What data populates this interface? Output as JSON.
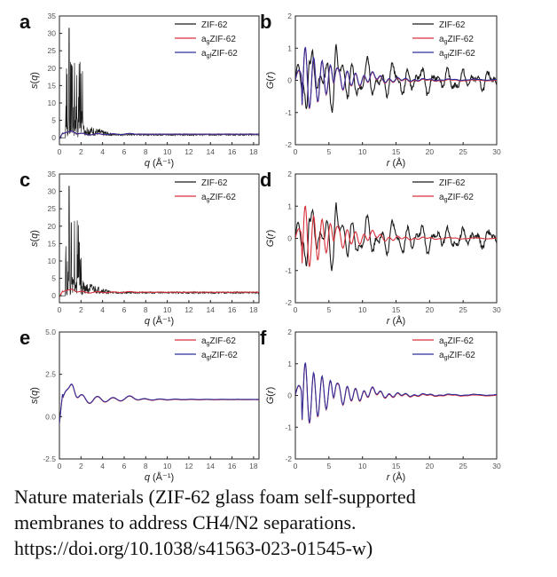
{
  "caption": {
    "line1": "Nature materials (ZIF-62 glass foam self-supported",
    "line2": "membranes to address CH4/N2 separations.",
    "line3": "https://doi.org/10.1038/s41563-023-01545-w)"
  },
  "colors": {
    "crystal": "#1a1a1a",
    "ag": "#d8303a",
    "agf": "#2e2e9c"
  },
  "chart_data": [
    {
      "panel": "a",
      "type": "line",
      "xlabel": "q (Å⁻¹)",
      "ylabel": "s(q)",
      "xlim": [
        0,
        18.5
      ],
      "ylim": [
        -2,
        35
      ],
      "xticks": [
        0,
        2,
        4,
        6,
        8,
        10,
        12,
        14,
        16,
        18
      ],
      "yticks": [
        0,
        5,
        10,
        15,
        20,
        25,
        30,
        35
      ],
      "legend": "top-right",
      "series": [
        {
          "name": "ZIF-62",
          "color": "crystal",
          "kind": "sq_crystal"
        },
        {
          "name": "agZIF-62",
          "color": "ag",
          "kind": "sq_glass"
        },
        {
          "name": "agfZIF-62",
          "color": "agf",
          "kind": "sq_glass"
        }
      ]
    },
    {
      "panel": "b",
      "type": "line",
      "xlabel": "r (Å)",
      "ylabel": "G(r)",
      "xlim": [
        0,
        30
      ],
      "ylim": [
        -2,
        2
      ],
      "xticks": [
        0,
        5,
        10,
        15,
        20,
        25,
        30
      ],
      "yticks": [
        -2,
        -1,
        0,
        1,
        2
      ],
      "legend": "top-right",
      "series": [
        {
          "name": "ZIF-62",
          "color": "crystal",
          "kind": "gr_crystal"
        },
        {
          "name": "agZIF-62",
          "color": "ag",
          "kind": "gr_glass"
        },
        {
          "name": "agfZIF-62",
          "color": "agf",
          "kind": "gr_glass"
        }
      ]
    },
    {
      "panel": "c",
      "type": "line",
      "xlabel": "q (Å⁻¹)",
      "ylabel": "s(q)",
      "xlim": [
        0,
        18.5
      ],
      "ylim": [
        -2,
        35
      ],
      "xticks": [
        0,
        2,
        4,
        6,
        8,
        10,
        12,
        14,
        16,
        18
      ],
      "yticks": [
        0,
        5,
        10,
        15,
        20,
        25,
        30,
        35
      ],
      "legend": "top-right",
      "series": [
        {
          "name": "ZIF-62",
          "color": "crystal",
          "kind": "sq_crystal"
        },
        {
          "name": "agZIF-62",
          "color": "ag",
          "kind": "sq_glass"
        }
      ]
    },
    {
      "panel": "d",
      "type": "line",
      "xlabel": "r (Å)",
      "ylabel": "G(r)",
      "xlim": [
        0,
        30
      ],
      "ylim": [
        -2,
        2
      ],
      "xticks": [
        0,
        5,
        10,
        15,
        20,
        25,
        30
      ],
      "yticks": [
        -2,
        -1,
        0,
        1,
        2
      ],
      "legend": "top-right",
      "series": [
        {
          "name": "ZIF-62",
          "color": "crystal",
          "kind": "gr_crystal"
        },
        {
          "name": "agZIF-62",
          "color": "ag",
          "kind": "gr_glass"
        }
      ]
    },
    {
      "panel": "e",
      "type": "line",
      "xlabel": "q (Å⁻¹)",
      "ylabel": "s(q)",
      "xlim": [
        0,
        18.5
      ],
      "ylim": [
        -2.5,
        5.0
      ],
      "xticks": [
        0,
        2,
        4,
        6,
        8,
        10,
        12,
        14,
        16,
        18
      ],
      "yticks": [
        -2.5,
        0.0,
        2.5,
        5.0
      ],
      "ytick_labels": [
        "-2.5",
        "0.0",
        "2.5",
        "5.0"
      ],
      "legend": "top-right",
      "series": [
        {
          "name": "agZIF-62",
          "color": "ag",
          "kind": "sq_glass"
        },
        {
          "name": "agfZIF-62",
          "color": "agf",
          "kind": "sq_glass"
        }
      ]
    },
    {
      "panel": "f",
      "type": "line",
      "xlabel": "r (Å)",
      "ylabel": "G(r)",
      "xlim": [
        0,
        30
      ],
      "ylim": [
        -2,
        2
      ],
      "xticks": [
        0,
        5,
        10,
        15,
        20,
        25,
        30
      ],
      "yticks": [
        -2,
        -1,
        0,
        1,
        2
      ],
      "legend": "top-right",
      "series": [
        {
          "name": "agZIF-62",
          "color": "ag",
          "kind": "gr_glass"
        },
        {
          "name": "agfZIF-62",
          "color": "agf",
          "kind": "gr_glass"
        }
      ]
    }
  ]
}
